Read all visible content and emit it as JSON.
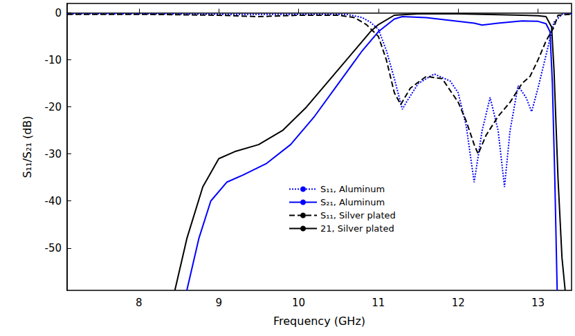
{
  "chart_data": {
    "type": "line",
    "x_label": "Frequency (GHz)",
    "y_label": "S₁₁/S₂₁ (dB)",
    "xlim": [
      7.1,
      13.42
    ],
    "xticks": [
      8,
      9,
      10,
      11,
      12,
      13
    ],
    "ylim": [
      -59,
      2
    ],
    "yticks": [
      0,
      -10,
      -20,
      -30,
      -40,
      -50
    ],
    "grid": false,
    "legend": "bottom",
    "series": [
      {
        "name": "S₁₁, Aluminum",
        "color": "#0000ff",
        "line_style": "dotted",
        "x": [
          7.1,
          8.0,
          9.0,
          10.0,
          10.6,
          10.8,
          10.9,
          11.0,
          11.1,
          11.2,
          11.3,
          11.35,
          11.5,
          11.7,
          11.9,
          12.0,
          12.1,
          12.2,
          12.3,
          12.4,
          12.5,
          12.58,
          12.65,
          12.75,
          12.85,
          12.92,
          13.0,
          13.1,
          13.2,
          13.3,
          13.42
        ],
        "values": [
          -0.2,
          -0.2,
          -0.3,
          -0.3,
          -0.3,
          -1,
          -2,
          -3.5,
          -8,
          -14,
          -20.5,
          -19,
          -15,
          -13,
          -14.5,
          -17,
          -24,
          -36,
          -25,
          -18,
          -25,
          -37,
          -25,
          -15.5,
          -18,
          -21,
          -16,
          -9,
          -2,
          -0.3,
          -0.2
        ]
      },
      {
        "name": "S₂₁, Aluminum",
        "color": "#0000ff",
        "line_style": "solid",
        "x": [
          8.6,
          8.75,
          8.9,
          9.1,
          9.3,
          9.6,
          9.9,
          10.2,
          10.5,
          10.8,
          11.0,
          11.2,
          11.3,
          11.6,
          11.9,
          12.2,
          12.3,
          12.5,
          12.8,
          13.0,
          13.1,
          13.15,
          13.18,
          13.21,
          13.24
        ],
        "values": [
          -59,
          -48,
          -40,
          -36,
          -34.5,
          -32,
          -28,
          -22,
          -15,
          -8,
          -4,
          -1.3,
          -0.8,
          -1,
          -1.6,
          -2.2,
          -2.6,
          -2.2,
          -1.7,
          -1.8,
          -2.3,
          -4,
          -15,
          -35,
          -59
        ]
      },
      {
        "name": "S₁₁, Silver plated",
        "color": "#000000",
        "line_style": "dashed",
        "x": [
          7.1,
          8.0,
          9.0,
          9.5,
          10.0,
          10.5,
          10.7,
          10.85,
          11.0,
          11.1,
          11.2,
          11.28,
          11.4,
          11.6,
          11.8,
          12.0,
          12.1,
          12.2,
          12.25,
          12.35,
          12.5,
          12.65,
          12.8,
          12.9,
          13.0,
          13.1,
          13.2,
          13.25,
          13.42
        ],
        "values": [
          -0.3,
          -0.3,
          -0.5,
          -0.8,
          -0.5,
          -0.5,
          -1,
          -2.5,
          -5,
          -10,
          -17,
          -19.5,
          -16,
          -13.5,
          -14,
          -19,
          -23,
          -28,
          -30,
          -26,
          -22,
          -19,
          -15,
          -13.5,
          -10,
          -6,
          -3,
          -0.5,
          -0.3
        ]
      },
      {
        "name": "21, Silver plated",
        "color": "#000000",
        "line_style": "solid",
        "x": [
          8.45,
          8.6,
          8.8,
          9.0,
          9.2,
          9.5,
          9.8,
          10.1,
          10.4,
          10.7,
          10.9,
          11.0,
          11.2,
          11.5,
          12.0,
          12.5,
          13.0,
          13.1,
          13.17,
          13.2,
          13.25,
          13.3,
          13.34
        ],
        "values": [
          -59,
          -48,
          -37,
          -31,
          -29.5,
          -28,
          -25,
          -20,
          -14,
          -8,
          -4,
          -2.5,
          -0.5,
          -0.2,
          -0.2,
          -0.4,
          -0.6,
          -0.8,
          -3,
          -12,
          -35,
          -52,
          -59
        ]
      }
    ]
  }
}
